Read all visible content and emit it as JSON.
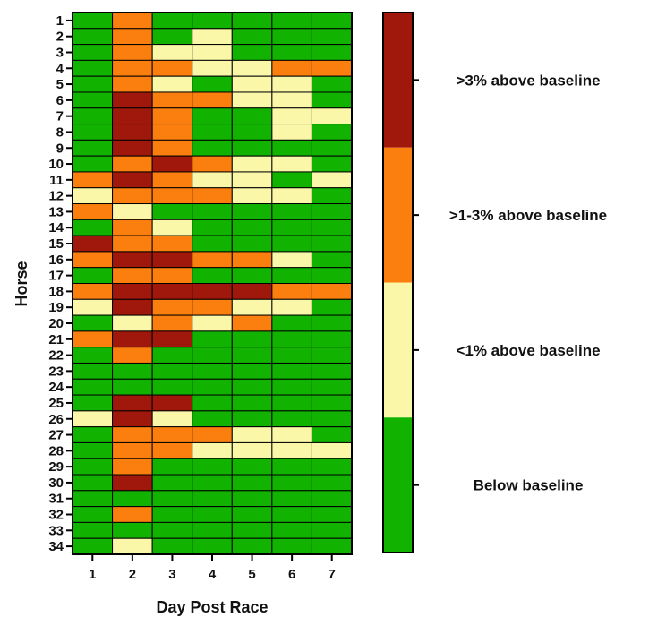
{
  "chart_data": {
    "type": "heatmap",
    "title": "",
    "xlabel": "Day Post Race",
    "ylabel": "Horse",
    "x": [
      "1",
      "2",
      "3",
      "4",
      "5",
      "6",
      "7"
    ],
    "y": [
      "1",
      "2",
      "3",
      "4",
      "5",
      "6",
      "7",
      "8",
      "9",
      "10",
      "11",
      "12",
      "13",
      "14",
      "15",
      "16",
      "17",
      "18",
      "19",
      "20",
      "21",
      "22",
      "23",
      "24",
      "25",
      "26",
      "27",
      "28",
      "29",
      "30",
      "31",
      "32",
      "33",
      "34"
    ],
    "levels": [
      {
        "value": 0,
        "label": "Below baseline",
        "color": "#11b300"
      },
      {
        "value": 1,
        "label": "<1% above baseline",
        "color": "#fbf7a8"
      },
      {
        "value": 2,
        "label": ">1-3% above baseline",
        "color": "#fb7f0f"
      },
      {
        "value": 3,
        "label": ">3% above baseline",
        "color": "#a0180c"
      }
    ],
    "values": [
      [
        0,
        2,
        0,
        0,
        0,
        0,
        0
      ],
      [
        0,
        2,
        0,
        1,
        0,
        0,
        0
      ],
      [
        0,
        2,
        1,
        1,
        0,
        0,
        0
      ],
      [
        0,
        2,
        2,
        1,
        1,
        2,
        2
      ],
      [
        0,
        2,
        1,
        0,
        1,
        1,
        0
      ],
      [
        0,
        3,
        2,
        2,
        1,
        1,
        0
      ],
      [
        0,
        3,
        2,
        0,
        0,
        1,
        1
      ],
      [
        0,
        3,
        2,
        0,
        0,
        1,
        0
      ],
      [
        0,
        3,
        2,
        0,
        0,
        0,
        0
      ],
      [
        0,
        2,
        3,
        2,
        1,
        1,
        0
      ],
      [
        2,
        3,
        2,
        1,
        1,
        0,
        1
      ],
      [
        1,
        2,
        2,
        2,
        1,
        1,
        0
      ],
      [
        2,
        1,
        0,
        0,
        0,
        0,
        0
      ],
      [
        0,
        2,
        1,
        0,
        0,
        0,
        0
      ],
      [
        3,
        2,
        2,
        0,
        0,
        0,
        0
      ],
      [
        2,
        3,
        3,
        2,
        2,
        1,
        0
      ],
      [
        0,
        2,
        2,
        0,
        0,
        0,
        0
      ],
      [
        2,
        3,
        3,
        3,
        3,
        2,
        2
      ],
      [
        1,
        3,
        2,
        2,
        1,
        1,
        0
      ],
      [
        0,
        1,
        2,
        1,
        2,
        0,
        0
      ],
      [
        2,
        3,
        3,
        0,
        0,
        0,
        0
      ],
      [
        0,
        2,
        0,
        0,
        0,
        0,
        0
      ],
      [
        0,
        0,
        0,
        0,
        0,
        0,
        0
      ],
      [
        0,
        0,
        0,
        0,
        0,
        0,
        0
      ],
      [
        0,
        3,
        3,
        0,
        0,
        0,
        0
      ],
      [
        1,
        3,
        1,
        0,
        0,
        0,
        0
      ],
      [
        0,
        2,
        2,
        2,
        1,
        1,
        0
      ],
      [
        0,
        2,
        2,
        1,
        1,
        1,
        1
      ],
      [
        0,
        2,
        0,
        0,
        0,
        0,
        0
      ],
      [
        0,
        3,
        0,
        0,
        0,
        0,
        0
      ],
      [
        0,
        0,
        0,
        0,
        0,
        0,
        0
      ],
      [
        0,
        2,
        0,
        0,
        0,
        0,
        0
      ],
      [
        0,
        0,
        0,
        0,
        0,
        0,
        0
      ],
      [
        0,
        1,
        0,
        0,
        0,
        0,
        0
      ]
    ],
    "legend": "right",
    "grid": true
  }
}
